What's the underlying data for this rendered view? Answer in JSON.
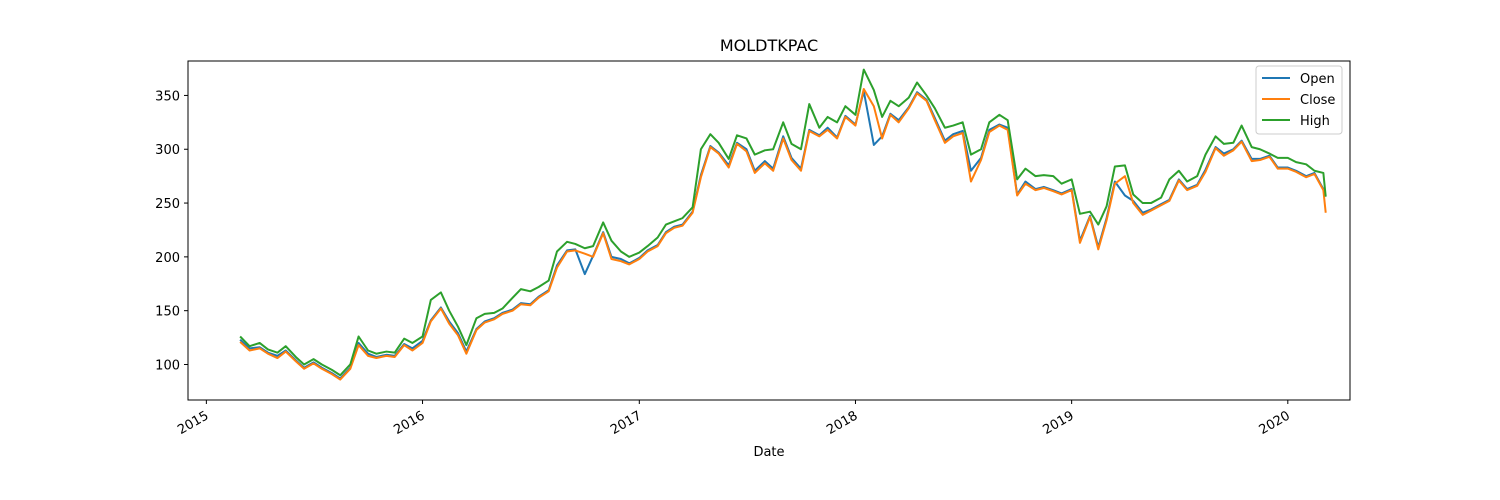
{
  "chart_data": {
    "type": "line",
    "title": "MOLDTKPAC",
    "xlabel": "Date",
    "ylabel": "",
    "xlim": [
      "2014-12-01",
      "2020-04-15"
    ],
    "ylim": [
      67,
      382
    ],
    "yticks": [
      100,
      150,
      200,
      250,
      300,
      350
    ],
    "xticks": [
      "2015",
      "2016",
      "2017",
      "2018",
      "2019",
      "2020"
    ],
    "legend_position": "top-right",
    "grid": false,
    "series": [
      {
        "name": "Open",
        "color": "#1f77b4"
      },
      {
        "name": "Close",
        "color": "#ff7f0e"
      },
      {
        "name": "High",
        "color": "#2ca02c"
      }
    ],
    "x": [
      "2015-02-27",
      "2015-03-15",
      "2015-04-01",
      "2015-04-15",
      "2015-05-01",
      "2015-05-15",
      "2015-06-01",
      "2015-06-15",
      "2015-07-01",
      "2015-07-15",
      "2015-08-01",
      "2015-08-15",
      "2015-09-01",
      "2015-09-15",
      "2015-10-01",
      "2015-10-15",
      "2015-11-01",
      "2015-11-15",
      "2015-12-01",
      "2015-12-15",
      "2016-01-01",
      "2016-01-15",
      "2016-02-01",
      "2016-02-15",
      "2016-03-01",
      "2016-03-15",
      "2016-04-01",
      "2016-04-15",
      "2016-05-01",
      "2016-05-15",
      "2016-06-01",
      "2016-06-15",
      "2016-07-01",
      "2016-07-15",
      "2016-08-01",
      "2016-08-15",
      "2016-09-01",
      "2016-09-15",
      "2016-10-01",
      "2016-10-15",
      "2016-11-01",
      "2016-11-15",
      "2016-12-01",
      "2016-12-15",
      "2017-01-01",
      "2017-01-15",
      "2017-02-01",
      "2017-02-15",
      "2017-03-01",
      "2017-03-15",
      "2017-04-01",
      "2017-04-15",
      "2017-05-01",
      "2017-05-15",
      "2017-06-01",
      "2017-06-15",
      "2017-07-01",
      "2017-07-15",
      "2017-08-01",
      "2017-08-15",
      "2017-09-01",
      "2017-09-15",
      "2017-10-01",
      "2017-10-15",
      "2017-11-01",
      "2017-11-15",
      "2017-12-01",
      "2017-12-15",
      "2018-01-01",
      "2018-01-15",
      "2018-02-01",
      "2018-02-15",
      "2018-03-01",
      "2018-03-15",
      "2018-04-01",
      "2018-04-15",
      "2018-05-01",
      "2018-05-15",
      "2018-06-01",
      "2018-06-15",
      "2018-07-01",
      "2018-07-15",
      "2018-08-01",
      "2018-08-15",
      "2018-09-01",
      "2018-09-15",
      "2018-10-01",
      "2018-10-15",
      "2018-11-01",
      "2018-11-15",
      "2018-12-01",
      "2018-12-15",
      "2019-01-01",
      "2019-01-15",
      "2019-02-01",
      "2019-02-15",
      "2019-03-01",
      "2019-03-15",
      "2019-04-01",
      "2019-04-15",
      "2019-05-01",
      "2019-05-15",
      "2019-06-01",
      "2019-06-15",
      "2019-07-01",
      "2019-07-15",
      "2019-08-01",
      "2019-08-15",
      "2019-09-01",
      "2019-09-15",
      "2019-10-01",
      "2019-10-15",
      "2019-11-01",
      "2019-11-15",
      "2019-12-01",
      "2019-12-15",
      "2020-01-01",
      "2020-01-15",
      "2020-02-01",
      "2020-02-15",
      "2020-03-01",
      "2020-03-05"
    ],
    "close": [
      121,
      113,
      115,
      110,
      106,
      112,
      103,
      96,
      101,
      96,
      91,
      86,
      96,
      118,
      108,
      106,
      108,
      107,
      118,
      113,
      120,
      140,
      152,
      138,
      127,
      110,
      132,
      139,
      142,
      147,
      150,
      156,
      155,
      162,
      168,
      190,
      205,
      206,
      203,
      200,
      222,
      198,
      196,
      193,
      198,
      205,
      210,
      222,
      227,
      229,
      241,
      274,
      302,
      296,
      283,
      305,
      298,
      278,
      287,
      280,
      310,
      290,
      280,
      317,
      312,
      318,
      310,
      330,
      322,
      356,
      340,
      310,
      332,
      325,
      338,
      352,
      345,
      327,
      306,
      312,
      315,
      270,
      290,
      316,
      322,
      318,
      257,
      268,
      262,
      264,
      261,
      258,
      262,
      213,
      237,
      207,
      234,
      268,
      275,
      250,
      239,
      243,
      248,
      252,
      271,
      262,
      266,
      279,
      301,
      294,
      299,
      307,
      289,
      290,
      293,
      282,
      282,
      279,
      274,
      277,
      262,
      241
    ],
    "open": [
      123,
      115,
      116,
      111,
      108,
      113,
      104,
      97,
      102,
      97,
      92,
      87,
      97,
      120,
      110,
      107,
      109,
      108,
      119,
      115,
      122,
      141,
      153,
      140,
      129,
      112,
      133,
      140,
      143,
      148,
      151,
      157,
      156,
      163,
      169,
      192,
      206,
      207,
      184,
      201,
      223,
      200,
      198,
      194,
      199,
      206,
      211,
      223,
      228,
      230,
      242,
      276,
      303,
      297,
      285,
      306,
      300,
      280,
      289,
      282,
      312,
      292,
      282,
      318,
      313,
      320,
      311,
      331,
      323,
      354,
      304,
      312,
      333,
      327,
      339,
      353,
      346,
      329,
      308,
      314,
      317,
      280,
      292,
      318,
      323,
      320,
      258,
      270,
      263,
      265,
      262,
      259,
      263,
      215,
      238,
      209,
      236,
      270,
      257,
      252,
      241,
      244,
      249,
      253,
      272,
      263,
      267,
      281,
      302,
      296,
      300,
      308,
      291,
      291,
      294,
      283,
      283,
      280,
      275,
      278,
      263,
      256
    ],
    "high": [
      126,
      117,
      120,
      114,
      111,
      117,
      107,
      100,
      105,
      100,
      95,
      90,
      100,
      126,
      113,
      110,
      112,
      111,
      124,
      120,
      126,
      160,
      167,
      150,
      135,
      118,
      143,
      147,
      148,
      152,
      162,
      170,
      168,
      172,
      178,
      205,
      214,
      212,
      208,
      210,
      232,
      215,
      205,
      200,
      204,
      210,
      218,
      230,
      233,
      236,
      246,
      300,
      314,
      306,
      291,
      313,
      310,
      295,
      299,
      300,
      325,
      305,
      300,
      342,
      320,
      330,
      325,
      340,
      332,
      374,
      355,
      330,
      345,
      340,
      348,
      362,
      350,
      338,
      320,
      322,
      325,
      295,
      300,
      325,
      332,
      327,
      272,
      282,
      275,
      276,
      275,
      268,
      272,
      240,
      242,
      230,
      247,
      284,
      285,
      258,
      250,
      250,
      255,
      272,
      280,
      270,
      275,
      295,
      312,
      305,
      306,
      322,
      302,
      300,
      296,
      292,
      292,
      288,
      286,
      280,
      278,
      256
    ]
  }
}
